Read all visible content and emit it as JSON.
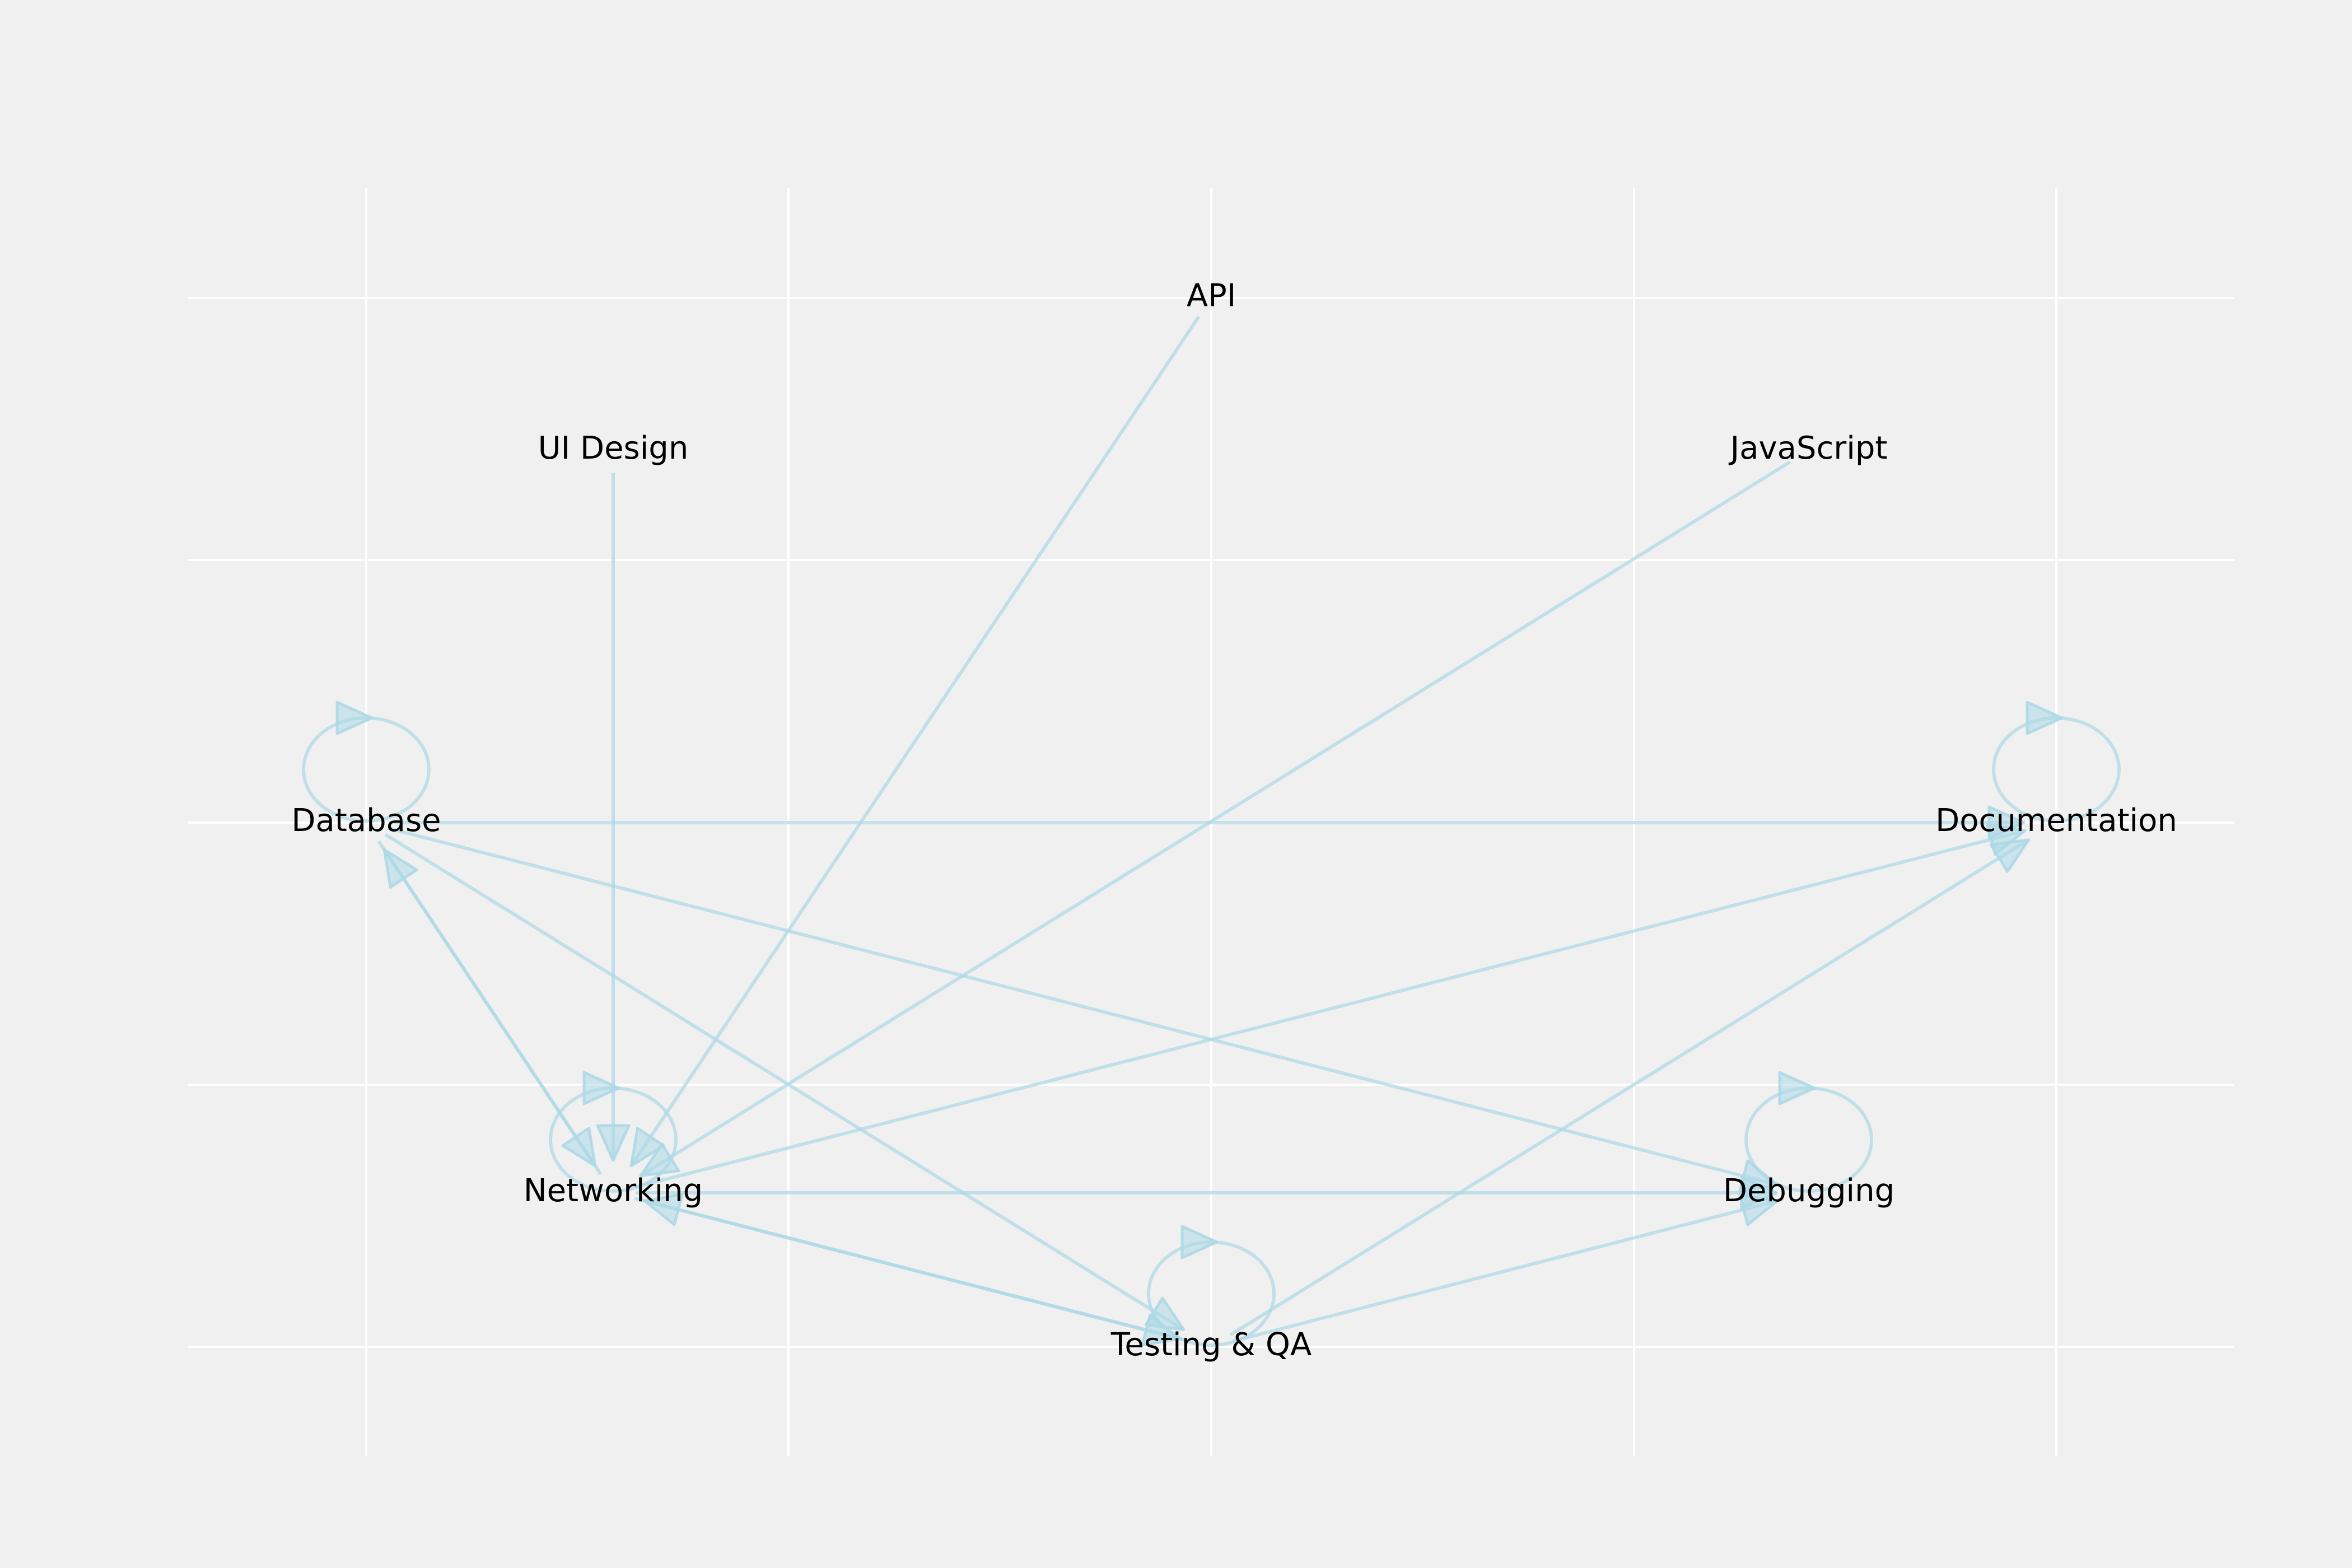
{
  "colors": {
    "background": "#f0f0f0",
    "grid": "#ffffff",
    "edge": "#add8e6",
    "label": "#000000"
  },
  "nodes": [
    {
      "id": "api",
      "label": "API"
    },
    {
      "id": "ui_design",
      "label": "UI Design"
    },
    {
      "id": "javascript",
      "label": "JavaScript"
    },
    {
      "id": "database",
      "label": "Database"
    },
    {
      "id": "documentation",
      "label": "Documentation"
    },
    {
      "id": "networking",
      "label": "Networking"
    },
    {
      "id": "debugging",
      "label": "Debugging"
    },
    {
      "id": "testing_qa",
      "label": "Testing & QA"
    }
  ],
  "edges": [
    {
      "from": "api",
      "to": "networking"
    },
    {
      "from": "ui_design",
      "to": "networking"
    },
    {
      "from": "javascript",
      "to": "networking"
    },
    {
      "from": "database",
      "to": "database"
    },
    {
      "from": "database",
      "to": "documentation"
    },
    {
      "from": "database",
      "to": "networking"
    },
    {
      "from": "database",
      "to": "debugging"
    },
    {
      "from": "database",
      "to": "testing_qa"
    },
    {
      "from": "documentation",
      "to": "documentation"
    },
    {
      "from": "networking",
      "to": "networking"
    },
    {
      "from": "networking",
      "to": "database"
    },
    {
      "from": "networking",
      "to": "documentation"
    },
    {
      "from": "networking",
      "to": "debugging"
    },
    {
      "from": "networking",
      "to": "testing_qa"
    },
    {
      "from": "testing_qa",
      "to": "networking"
    },
    {
      "from": "testing_qa",
      "to": "testing_qa"
    },
    {
      "from": "testing_qa",
      "to": "documentation"
    },
    {
      "from": "testing_qa",
      "to": "debugging"
    },
    {
      "from": "debugging",
      "to": "debugging"
    }
  ]
}
